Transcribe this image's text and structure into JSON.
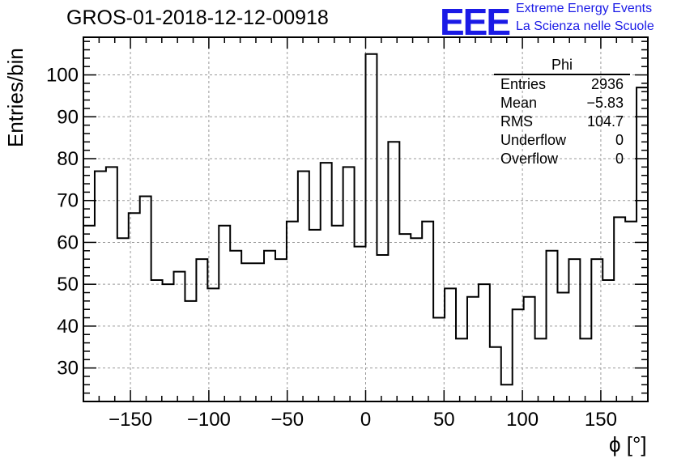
{
  "chart_data": {
    "type": "bar",
    "style": "histogram-step",
    "title": "GROS-01-2018-12-12-00918",
    "xlabel": "ϕ [°]",
    "ylabel": "Entries/bin",
    "xlim": [
      -180,
      180
    ],
    "ylim": [
      22,
      109
    ],
    "bin_width": 7.2,
    "x_ticks": [
      -150,
      -100,
      -50,
      0,
      50,
      100,
      150
    ],
    "x_tick_labels": [
      "−150",
      "−100",
      "−50",
      "0",
      "50",
      "100",
      "150"
    ],
    "y_ticks": [
      30,
      40,
      50,
      60,
      70,
      80,
      90,
      100
    ],
    "grid": true,
    "values": [
      64,
      77,
      78,
      61,
      67,
      71,
      51,
      50,
      53,
      46,
      56,
      49,
      64,
      58,
      55,
      55,
      58,
      56,
      65,
      77,
      63,
      79,
      64,
      78,
      59,
      105,
      57,
      84,
      62,
      61,
      65,
      42,
      49,
      37,
      47,
      50,
      35,
      26,
      44,
      47,
      37,
      58,
      48,
      56,
      37,
      56,
      51,
      66,
      65,
      97
    ]
  },
  "stats": {
    "name": "Phi",
    "rows": [
      {
        "label": "Entries",
        "value": "2936"
      },
      {
        "label": "Mean",
        "value": "−5.83"
      },
      {
        "label": "RMS",
        "value": "104.7"
      },
      {
        "label": "Underflow",
        "value": "0"
      },
      {
        "label": "Overflow",
        "value": "0"
      }
    ]
  },
  "logo": {
    "mark": "EEE",
    "line1": "Extreme Energy Events",
    "line2": "La Scienza nelle Scuole",
    "color": "#1a1ae6"
  }
}
